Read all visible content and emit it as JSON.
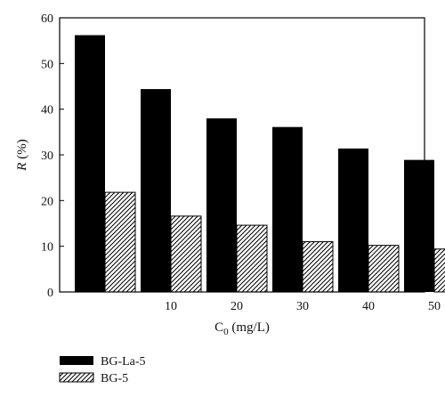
{
  "chart_data": {
    "type": "bar",
    "categories": [
      "",
      "10",
      "20",
      "30",
      "40",
      "50"
    ],
    "series": [
      {
        "name": "BG-La-5",
        "values": [
          56.2,
          44.4,
          38.0,
          36.1,
          31.4,
          28.9
        ],
        "color": "#000000",
        "pattern": "solid"
      },
      {
        "name": "BG-5",
        "values": [
          21.8,
          16.6,
          14.6,
          11.0,
          10.2,
          9.4
        ],
        "color": "#000000",
        "pattern": "hatched"
      }
    ],
    "title": "",
    "xlabel_main": "C",
    "xlabel_sub": "0",
    "xlabel_unit": " (mg/L)",
    "ylabel_italic": "R",
    "ylabel_unit": " (%)",
    "ylim": [
      0,
      60
    ],
    "yticks": [
      "0",
      "10",
      "20",
      "30",
      "40",
      "50",
      "60"
    ],
    "grid": false,
    "legend_position": "bottom-left"
  }
}
